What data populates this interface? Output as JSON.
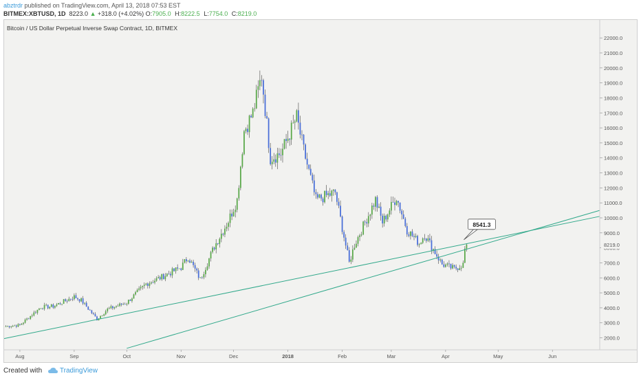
{
  "header": {
    "author": "abztrdr",
    "published": "published on TradingView.com, April 13, 2018 07:53 EST"
  },
  "quote": {
    "symbol": "BITMEX:XBTUSD, 1D",
    "last": "8223.0",
    "arrow": "▲",
    "change": "+318.0 (+4.02%)",
    "o_label": "O:",
    "o_value": "7905.0",
    "h_label": "H:",
    "h_value": "8222.5",
    "l_label": "L:",
    "l_value": "7754.0",
    "c_label": "C:",
    "c_value": "8219.0"
  },
  "colors": {
    "up": "#5aa84a",
    "down": "#4a6fd8",
    "trendline": "#2fa88a",
    "background": "#f2f2f0",
    "callout_border": "#555555"
  },
  "chart_data": {
    "type": "candlestick",
    "title": "Bitcoin / US Dollar Perpetual Inverse Swap Contract, 1D, BITMEX",
    "y_ticks": [
      2000,
      3000,
      4000,
      5000,
      6000,
      7000,
      8000,
      9000,
      10000,
      11000,
      12000,
      13000,
      14000,
      15000,
      16000,
      17000,
      18000,
      19000,
      20000,
      21000,
      22000
    ],
    "y_tick_labels": [
      "2000.0",
      "3000.0",
      "4000.0",
      "5000.0",
      "6000.0",
      "7000.0",
      "8000.0",
      "9000.0",
      "10000.0",
      "11000.0",
      "12000.0",
      "13000.0",
      "14000.0",
      "15000.0",
      "16000.0",
      "17000.0",
      "18000.0",
      "19000.0",
      "20000.0",
      "21000.0",
      "22000.0"
    ],
    "ylim": [
      1200,
      23200
    ],
    "x_range": [
      "2017-07-23",
      "2018-06-28"
    ],
    "x_ticks": [
      {
        "date": "2017-08-01",
        "label": "Aug"
      },
      {
        "date": "2017-09-01",
        "label": "Sep"
      },
      {
        "date": "2017-10-01",
        "label": "Oct"
      },
      {
        "date": "2017-11-01",
        "label": "Nov"
      },
      {
        "date": "2017-12-01",
        "label": "Dec"
      },
      {
        "date": "2018-01-01",
        "label": "2018"
      },
      {
        "date": "2018-02-01",
        "label": "Feb"
      },
      {
        "date": "2018-03-01",
        "label": "Mar"
      },
      {
        "date": "2018-04-01",
        "label": "Apr"
      },
      {
        "date": "2018-05-01",
        "label": "May"
      },
      {
        "date": "2018-06-01",
        "label": "Jun"
      }
    ],
    "price_path": [
      {
        "date": "2017-07-23",
        "close": 2750
      },
      {
        "date": "2017-08-01",
        "close": 2850
      },
      {
        "date": "2017-08-13",
        "close": 4050
      },
      {
        "date": "2017-08-20",
        "close": 4100
      },
      {
        "date": "2017-09-01",
        "close": 4750
      },
      {
        "date": "2017-09-05",
        "close": 4500
      },
      {
        "date": "2017-09-14",
        "close": 3250
      },
      {
        "date": "2017-09-20",
        "close": 3900
      },
      {
        "date": "2017-10-01",
        "close": 4350
      },
      {
        "date": "2017-10-12",
        "close": 5600
      },
      {
        "date": "2017-10-20",
        "close": 6000
      },
      {
        "date": "2017-11-01",
        "close": 6700
      },
      {
        "date": "2017-11-05",
        "close": 7400
      },
      {
        "date": "2017-11-12",
        "close": 5900
      },
      {
        "date": "2017-11-20",
        "close": 8100
      },
      {
        "date": "2017-11-28",
        "close": 9800
      },
      {
        "date": "2017-12-03",
        "close": 11200
      },
      {
        "date": "2017-12-07",
        "close": 15800
      },
      {
        "date": "2017-12-12",
        "close": 17000
      },
      {
        "date": "2017-12-17",
        "close": 19500
      },
      {
        "date": "2017-12-22",
        "close": 14000
      },
      {
        "date": "2017-12-28",
        "close": 14300
      },
      {
        "date": "2018-01-06",
        "close": 16700
      },
      {
        "date": "2018-01-10",
        "close": 14500
      },
      {
        "date": "2018-01-17",
        "close": 11200
      },
      {
        "date": "2018-01-28",
        "close": 11700
      },
      {
        "date": "2018-02-05",
        "close": 7000
      },
      {
        "date": "2018-02-08",
        "close": 8200
      },
      {
        "date": "2018-02-20",
        "close": 11200
      },
      {
        "date": "2018-02-24",
        "close": 9700
      },
      {
        "date": "2018-03-04",
        "close": 11400
      },
      {
        "date": "2018-03-10",
        "close": 9200
      },
      {
        "date": "2018-03-17",
        "close": 8300
      },
      {
        "date": "2018-03-20",
        "close": 8900
      },
      {
        "date": "2018-03-30",
        "close": 6900
      },
      {
        "date": "2018-04-06",
        "close": 6600
      },
      {
        "date": "2018-04-11",
        "close": 6900
      },
      {
        "date": "2018-04-12",
        "close": 7900
      },
      {
        "date": "2018-04-13",
        "close": 8219
      }
    ],
    "trendlines": [
      {
        "start": {
          "date": "2017-07-23",
          "value": 1950
        },
        "end": {
          "date": "2018-06-28",
          "value": 10100
        }
      },
      {
        "start": {
          "date": "2017-10-01",
          "value": 1300
        },
        "end": {
          "date": "2018-06-28",
          "value": 10500
        }
      }
    ],
    "annotations": [
      {
        "text": "8541.3",
        "date": "2018-04-13",
        "value": 8541.3
      }
    ],
    "last_price": {
      "value": 8219,
      "label": "8219.0"
    },
    "grid": false,
    "legend": "none"
  },
  "footer": {
    "created_with": "Created with",
    "brand": "TradingView"
  }
}
